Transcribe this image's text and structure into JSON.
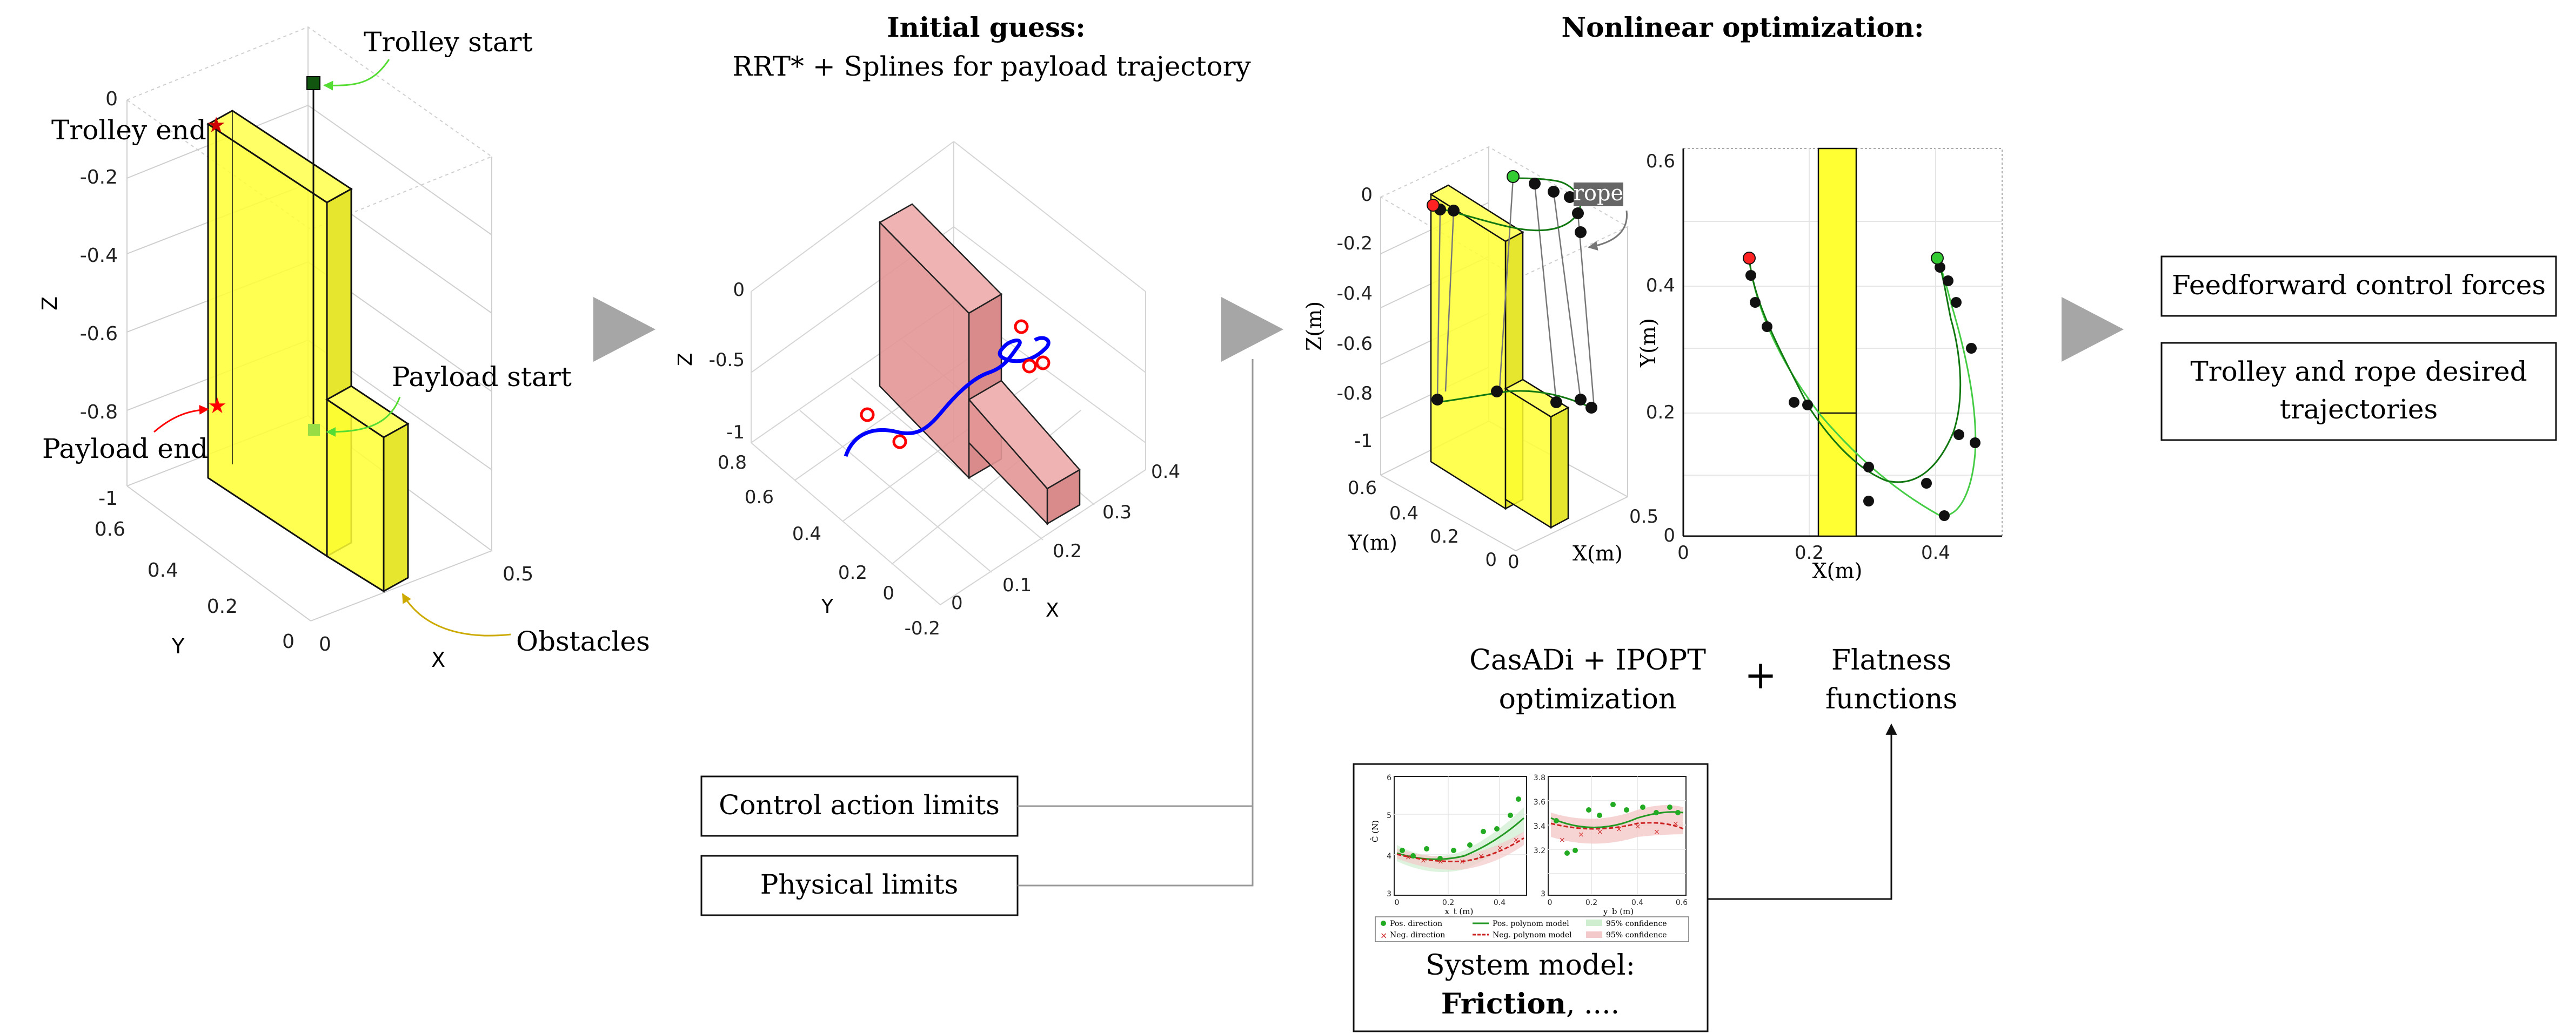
{
  "panel1": {
    "annotations": {
      "trolley_start": "Trolley start",
      "trolley_end": "Trolley end",
      "payload_start": "Payload start",
      "payload_end": "Payload end",
      "obstacles": "Obstacles"
    },
    "axes": {
      "z_label": "Z",
      "y_label": "Y",
      "x_label": "X",
      "z_ticks": [
        "0",
        "-0.2",
        "-0.4",
        "-0.6",
        "-0.8",
        "-1"
      ],
      "y_ticks": [
        "0.6",
        "0.4",
        "0.2",
        "0"
      ],
      "x_ticks": [
        "0",
        "0.5"
      ]
    }
  },
  "panel2": {
    "title_bold": "Initial guess:",
    "title": "RRT* + Splines for payload trajectory",
    "axes": {
      "z_label": "Z",
      "y_label": "Y",
      "x_label": "X",
      "z_ticks": [
        "0",
        "-0.5",
        "-1"
      ],
      "y_ticks": [
        "0.8",
        "0.6",
        "0.4",
        "0.2",
        "0",
        "-0.2"
      ],
      "x_ticks": [
        "0",
        "0.1",
        "0.2",
        "0.3",
        "0.4"
      ]
    }
  },
  "panel3": {
    "title_bold": "Nonlinear optimization:",
    "rope_label": "rope",
    "plot3d": {
      "z_label": "Z(m)",
      "y_label": "Y(m)",
      "x_label": "X(m)",
      "z_ticks": [
        "0",
        "-0.2",
        "-0.4",
        "-0.6",
        "-0.8",
        "-1"
      ],
      "y_ticks": [
        "0.6",
        "0.4",
        "0.2",
        "0"
      ],
      "x_ticks": [
        "0",
        "0.5"
      ]
    },
    "plot2d": {
      "x_label": "X(m)",
      "y_label": "Y(m)",
      "x_ticks": [
        "0",
        "0.2",
        "0.4"
      ],
      "y_ticks": [
        "0",
        "0.2",
        "0.4",
        "0.6"
      ]
    }
  },
  "solver": {
    "casadi": "CasADi + IPOPT",
    "casadi2": "optimization",
    "plus": "+",
    "flatness": "Flatness",
    "flatness2": "functions"
  },
  "limits": {
    "control": "Control action limits",
    "physical": "Physical limits"
  },
  "system_model": {
    "caption": "System model:",
    "friction": "Friction",
    "ellipsis": ", ....",
    "left_plot": {
      "y_label": "Ĉ (N)",
      "x_label": "x_t (m)",
      "y_ticks": [
        "6",
        "5",
        "4",
        "3"
      ],
      "x_ticks": [
        "0",
        "0.2",
        "0.4"
      ]
    },
    "right_plot": {
      "x_label": "y_b (m)",
      "y_ticks": [
        "3.8",
        "3.6",
        "3.4",
        "3.2",
        "3"
      ],
      "x_ticks": [
        "0",
        "0.2",
        "0.4",
        "0.6"
      ]
    },
    "legend": {
      "pos_dir": "Pos. direction",
      "neg_dir": "Neg. direction",
      "pos_model": "Pos. polynom model",
      "neg_model": "Neg. polynom model",
      "conf1": "95% confidence",
      "conf2": "95% confidence"
    }
  },
  "outputs": {
    "feedforward": "Feedforward control forces",
    "traj_line1": "Trolley and rope desired",
    "traj_line2": "trajectories"
  },
  "colors": {
    "obstacle_yellow": "#ffff33",
    "obstacle_red": "#e39696",
    "trajectory_blue": "#0000ff",
    "marker_red": "#ff0000",
    "arrow_green": "#55dd33",
    "arrow_gold": "#ccaa00",
    "flow_arrow_gray": "#a6a6a6",
    "path_green": "#117711",
    "path_lightgreen": "#44cc44"
  }
}
